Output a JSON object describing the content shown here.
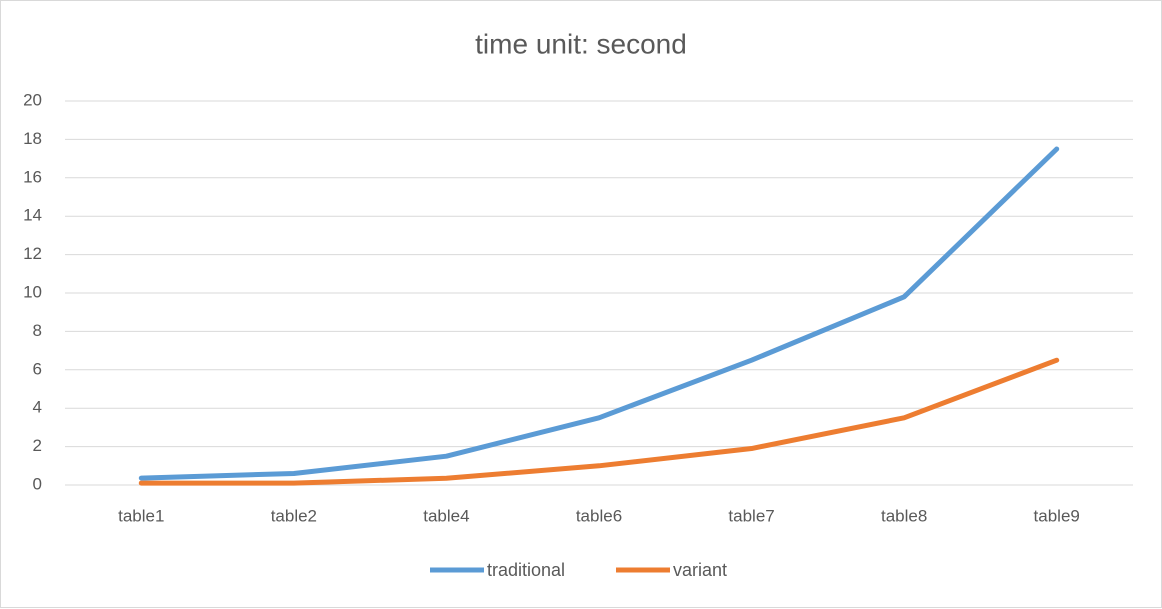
{
  "chart_data": {
    "type": "line",
    "title": "time unit: second",
    "categories": [
      "table1",
      "table2",
      "table4",
      "table6",
      "table7",
      "table8",
      "table9"
    ],
    "series": [
      {
        "name": "traditional",
        "color": "#5b9bd5",
        "values": [
          0.36,
          0.6,
          1.5,
          3.5,
          6.5,
          9.8,
          17.5
        ]
      },
      {
        "name": "variant",
        "color": "#ed7d31",
        "values": [
          0.1,
          0.1,
          0.35,
          1.0,
          1.9,
          3.5,
          6.5
        ]
      }
    ],
    "ylim": [
      0,
      20
    ],
    "yticks": [
      0,
      2,
      4,
      6,
      8,
      10,
      12,
      14,
      16,
      18,
      20
    ],
    "grid": true,
    "legend": "bottom"
  }
}
